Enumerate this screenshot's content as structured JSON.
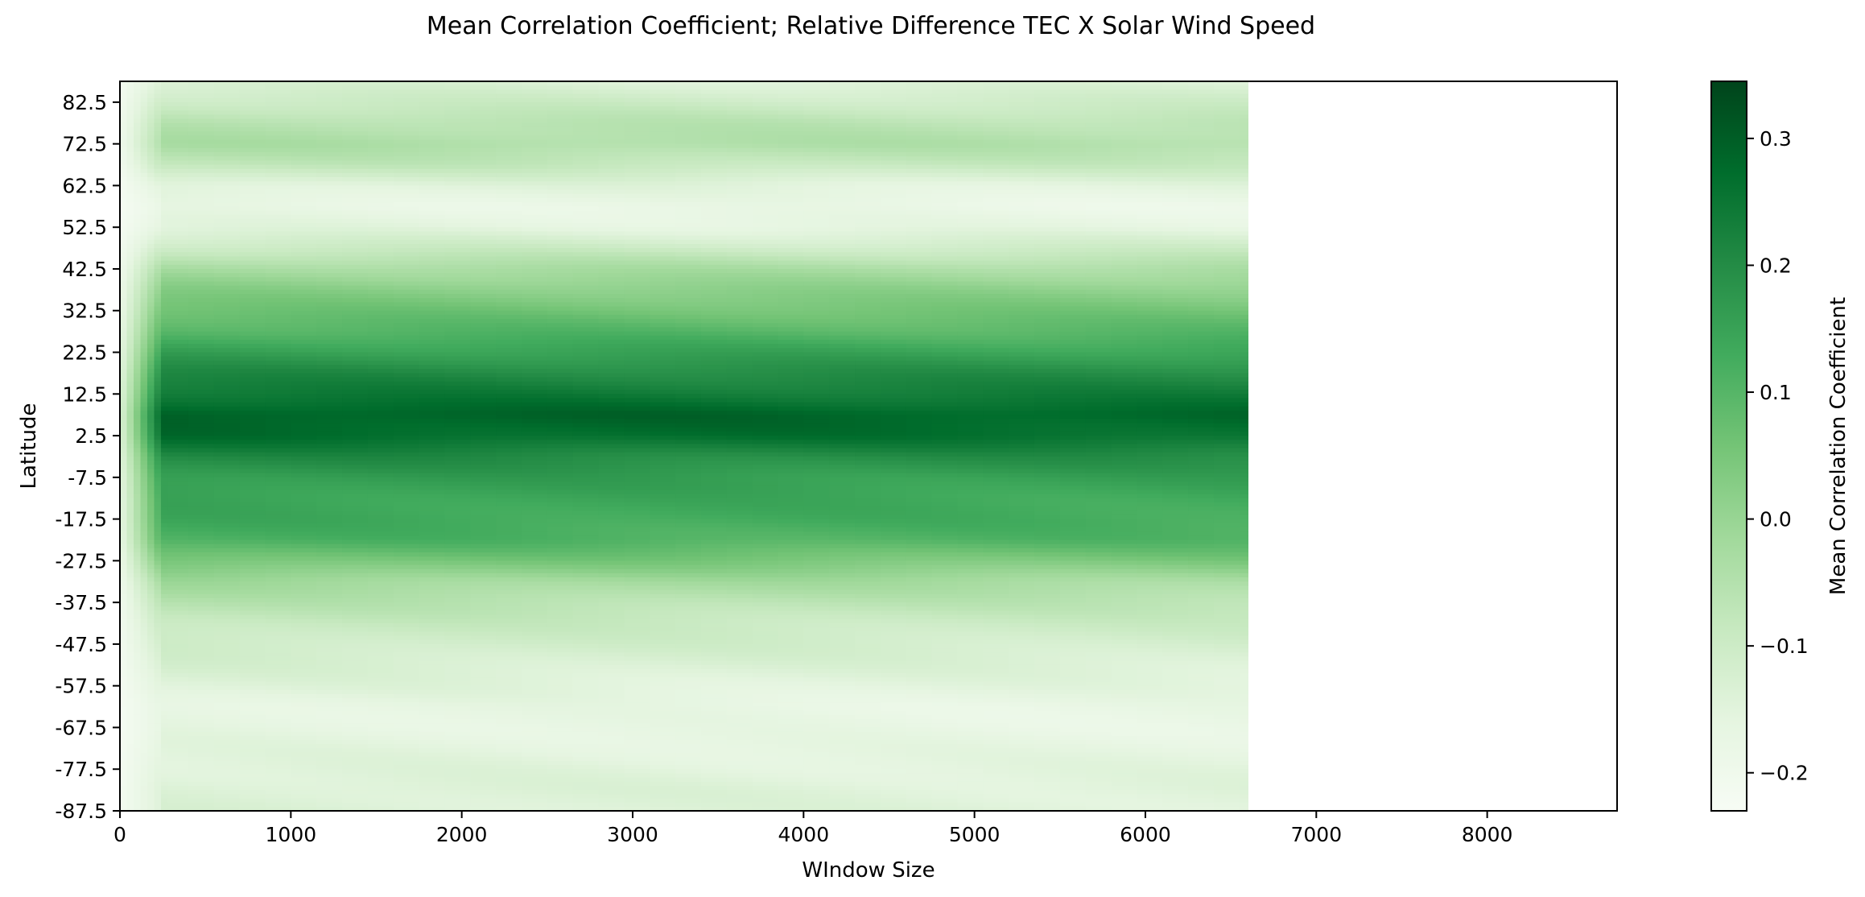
{
  "chart_data": {
    "type": "heatmap",
    "title": "Mean Correlation Coefficient; Relative Difference TEC X Solar Wind Speed",
    "xlabel": "WIndow Size",
    "ylabel": "Latitude",
    "xlim": [
      0,
      8760
    ],
    "ylim": [
      -87.5,
      87.5
    ],
    "data_x_range": [
      0,
      6600
    ],
    "x_ticks": [
      "0",
      "1000",
      "2000",
      "3000",
      "4000",
      "5000",
      "6000",
      "7000",
      "8000"
    ],
    "y_ticks": [
      "82.5",
      "72.5",
      "62.5",
      "52.5",
      "42.5",
      "32.5",
      "22.5",
      "12.5",
      "2.5",
      "-7.5",
      "-17.5",
      "-27.5",
      "-37.5",
      "-47.5",
      "-57.5",
      "-67.5",
      "-77.5",
      "-87.5"
    ],
    "colormap": "Greens",
    "colormap_stops": [
      "#f7fcf5",
      "#e5f5e0",
      "#c7e9c0",
      "#a1d99b",
      "#74c476",
      "#41ab5d",
      "#238b45",
      "#006d2c",
      "#00441b"
    ],
    "colorbar": {
      "label": "Mean Correlation Coefficient",
      "range": [
        -0.23,
        0.345
      ],
      "ticks": [
        "0.3",
        "0.2",
        "0.1",
        "0.0",
        "−0.1",
        "−0.2"
      ]
    },
    "latitude_profile": {
      "latitudes": [
        -87.5,
        -82.5,
        -77.5,
        -72.5,
        -67.5,
        -62.5,
        -57.5,
        -52.5,
        -47.5,
        -42.5,
        -37.5,
        -32.5,
        -27.5,
        -22.5,
        -17.5,
        -12.5,
        -7.5,
        -2.5,
        2.5,
        7.5,
        12.5,
        17.5,
        22.5,
        27.5,
        32.5,
        37.5,
        42.5,
        47.5,
        52.5,
        57.5,
        62.5,
        67.5,
        72.5,
        77.5,
        82.5,
        87.5
      ],
      "values": [
        -0.14,
        -0.14,
        -0.15,
        -0.16,
        -0.17,
        -0.17,
        -0.15,
        -0.13,
        -0.11,
        -0.09,
        -0.06,
        -0.02,
        0.05,
        0.11,
        0.13,
        0.14,
        0.16,
        0.2,
        0.27,
        0.29,
        0.24,
        0.2,
        0.15,
        0.1,
        0.06,
        0.02,
        -0.03,
        -0.1,
        -0.16,
        -0.18,
        -0.15,
        -0.08,
        -0.04,
        -0.06,
        -0.1,
        -0.14
      ]
    }
  }
}
